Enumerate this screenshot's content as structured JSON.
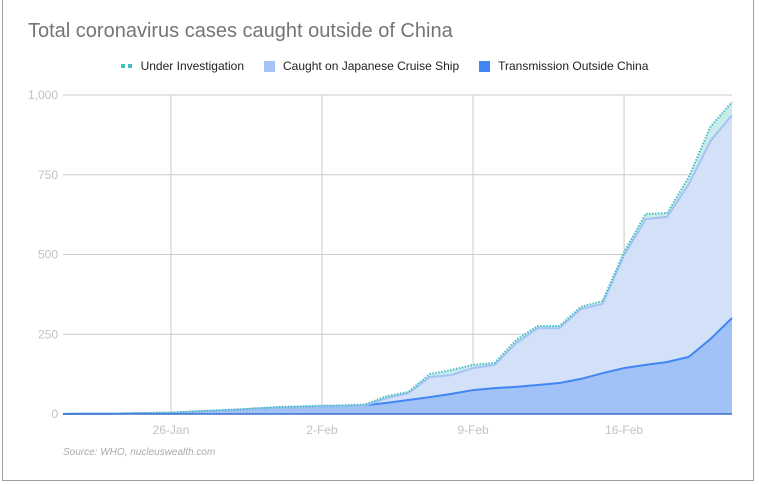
{
  "chart_data": {
    "type": "area",
    "stacked": true,
    "title": "Total coronavirus cases caught outside of China",
    "source": "Source: WHO, nucleuswealth.com",
    "xlabel": "",
    "ylabel": "",
    "ylim": [
      0,
      1000
    ],
    "yticks": [
      "0",
      "250",
      "500",
      "750",
      "1,000"
    ],
    "ytick_values": [
      0,
      250,
      500,
      750,
      1000
    ],
    "xticks": [
      {
        "label": "26-Jan",
        "index": 5
      },
      {
        "label": "2-Feb",
        "index": 12
      },
      {
        "label": "9-Feb",
        "index": 19
      },
      {
        "label": "16-Feb",
        "index": 26
      }
    ],
    "x": [
      "21-Jan",
      "22-Jan",
      "23-Jan",
      "24-Jan",
      "25-Jan",
      "26-Jan",
      "27-Jan",
      "28-Jan",
      "29-Jan",
      "30-Jan",
      "31-Jan",
      "1-Feb",
      "2-Feb",
      "3-Feb",
      "4-Feb",
      "5-Feb",
      "6-Feb",
      "7-Feb",
      "8-Feb",
      "9-Feb",
      "10-Feb",
      "11-Feb",
      "12-Feb",
      "13-Feb",
      "14-Feb",
      "15-Feb",
      "16-Feb",
      "17-Feb",
      "18-Feb",
      "19-Feb",
      "20-Feb",
      "21-Feb"
    ],
    "grid": true,
    "legend_position": "top",
    "series": [
      {
        "name": "Transmission Outside China",
        "color": "#4285f4",
        "fill": "#a1c2f7",
        "values": [
          0,
          1,
          1,
          2,
          3,
          4,
          7,
          10,
          13,
          17,
          20,
          22,
          24,
          25,
          27,
          35,
          44,
          53,
          63,
          75,
          81,
          85,
          91,
          97,
          110,
          128,
          144,
          154,
          163,
          179,
          235,
          301
        ]
      },
      {
        "name": "Caught on Japanese Cruise Ship",
        "color": "#a4c2f4",
        "fill": "#d2e1f8",
        "values": [
          0,
          0,
          0,
          0,
          0,
          0,
          0,
          0,
          0,
          0,
          0,
          0,
          0,
          0,
          0,
          15,
          21,
          63,
          59,
          69,
          73,
          137,
          178,
          172,
          219,
          217,
          354,
          457,
          455,
          542,
          621,
          636
        ]
      },
      {
        "name": "Under Investigation",
        "color": "#46bdc6",
        "fill": "#c9ebea",
        "values": [
          0,
          0,
          0,
          0,
          0,
          0,
          1,
          1,
          1,
          1,
          2,
          2,
          2,
          2,
          3,
          6,
          4,
          9,
          16,
          10,
          6,
          10,
          7,
          7,
          7,
          9,
          10,
          16,
          12,
          22,
          44,
          41
        ]
      }
    ]
  }
}
